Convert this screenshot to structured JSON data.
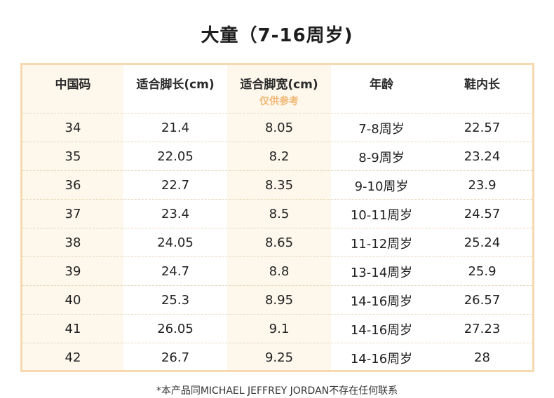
{
  "title": "大童（7-16周岁)",
  "headers": [
    {
      "label": "中国码",
      "note": ""
    },
    {
      "label": "适合脚长(cm)",
      "note": ""
    },
    {
      "label": "适合脚宽(cm)",
      "note": "仅供参考"
    },
    {
      "label": "年龄",
      "note": ""
    },
    {
      "label": "鞋内长",
      "note": ""
    }
  ],
  "rows": [
    [
      "34",
      "21.4",
      "8.05",
      "7-8周岁",
      "22.57"
    ],
    [
      "35",
      "22.05",
      "8.2",
      "8-9周岁",
      "23.24"
    ],
    [
      "36",
      "22.7",
      "8.35",
      "9-10周岁",
      "23.9"
    ],
    [
      "37",
      "23.4",
      "8.5",
      "10-11周岁",
      "24.57"
    ],
    [
      "38",
      "24.05",
      "8.65",
      "11-12周岁",
      "25.24"
    ],
    [
      "39",
      "24.7",
      "8.8",
      "13-14周岁",
      "25.9"
    ],
    [
      "40",
      "25.3",
      "8.95",
      "14-16周岁",
      "26.57"
    ],
    [
      "41",
      "26.05",
      "9.1",
      "14-16周岁",
      "27.23"
    ],
    [
      "42",
      "26.7",
      "9.25",
      "14-16周岁",
      "28"
    ]
  ],
  "footnote": "*本产品同MICHAEL JEFFREY JORDAN不存在任何联系",
  "colors": {
    "frame_border": "#f6d9b0",
    "shaded_column": "#fdf7ec",
    "note_text": "#f0b875"
  }
}
